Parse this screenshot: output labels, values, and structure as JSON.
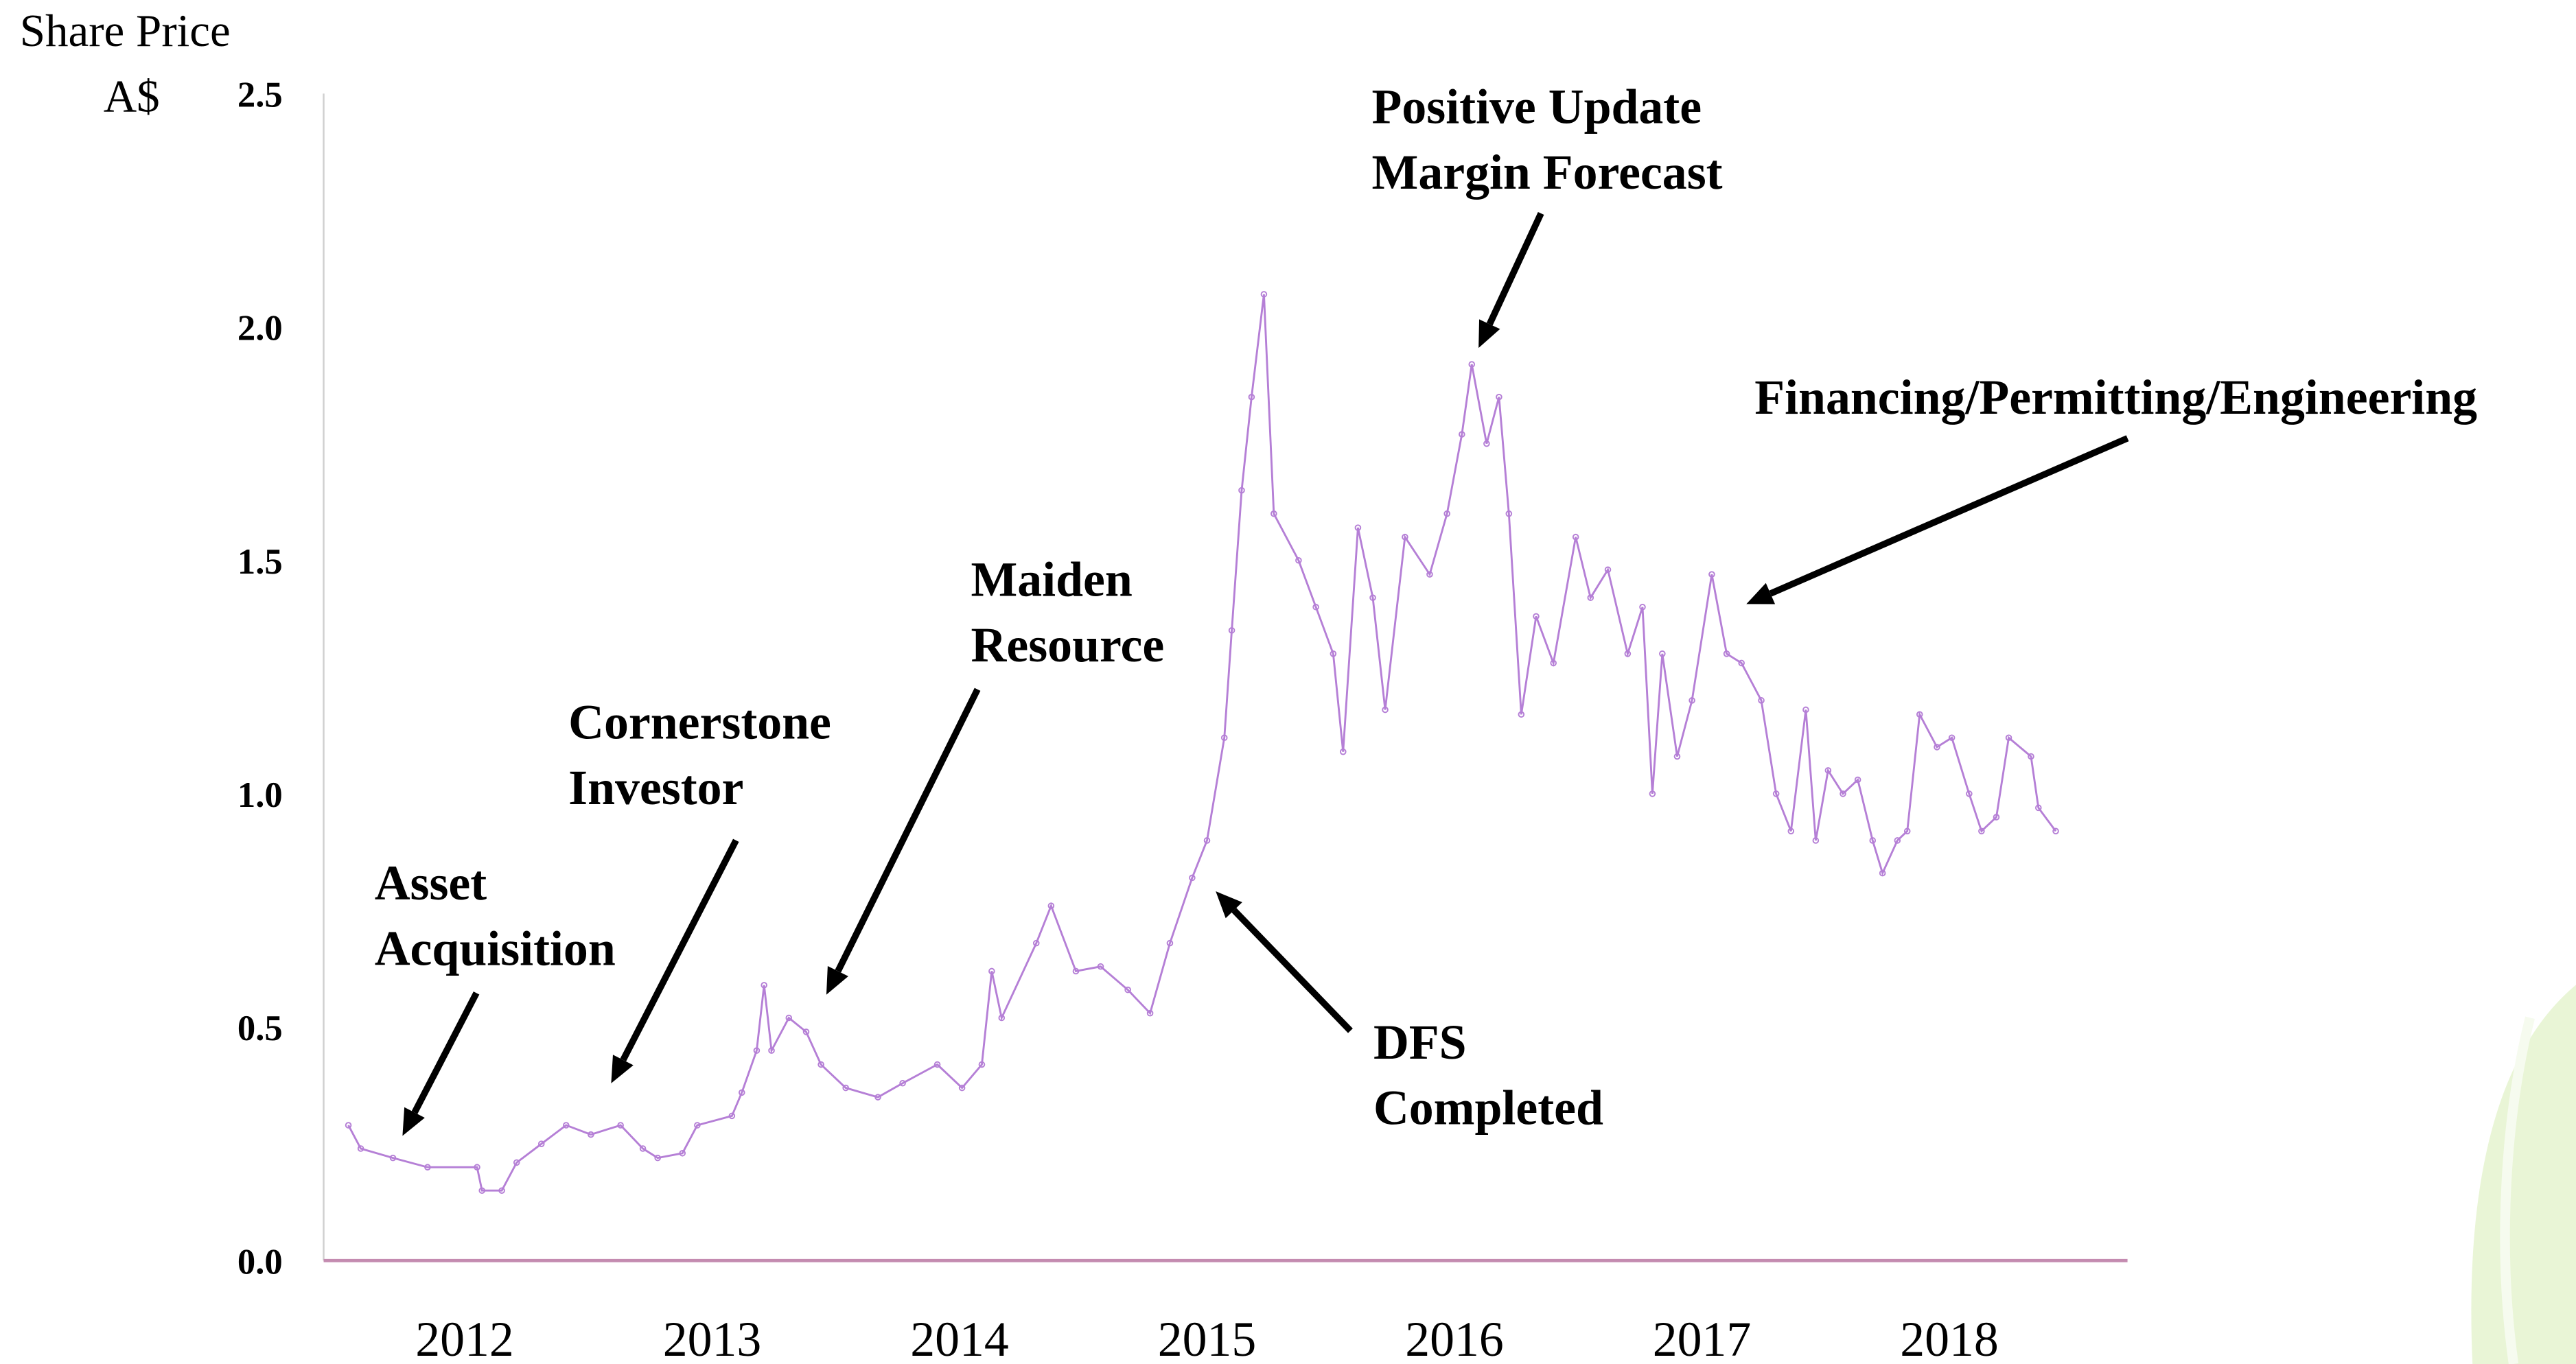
{
  "chart_data": {
    "type": "line",
    "y_label": [
      "Share Price",
      "A$"
    ],
    "annotations": [
      {
        "text": [
          "Asset",
          "Acquisition"
        ]
      },
      {
        "text": [
          "Cornerstone",
          "Investor"
        ]
      },
      {
        "text": [
          "Maiden",
          "Resource"
        ]
      },
      {
        "text": [
          "Positive Update",
          "Margin Forecast"
        ]
      },
      {
        "text": [
          "Financing/Permitting/Engineering"
        ]
      },
      {
        "text": [
          "DFS",
          "Completed"
        ]
      }
    ],
    "x": [
      2011.53,
      2011.58,
      2011.71,
      2011.85,
      2012.05,
      2012.07,
      2012.15,
      2012.21,
      2012.31,
      2012.41,
      2012.51,
      2012.63,
      2012.72,
      2012.78,
      2012.88,
      2012.94,
      2013.08,
      2013.12,
      2013.18,
      2013.21,
      2013.24,
      2013.31,
      2013.38,
      2013.44,
      2013.54,
      2013.67,
      2013.77,
      2013.91,
      2014.01,
      2014.09,
      2014.13,
      2014.17,
      2014.31,
      2014.37,
      2014.47,
      2014.57,
      2014.68,
      2014.77,
      2014.85,
      2014.94,
      2015.0,
      2015.07,
      2015.1,
      2015.14,
      2015.18,
      2015.23,
      2015.27,
      2015.37,
      2015.44,
      2015.51,
      2015.55,
      2015.61,
      2015.67,
      2015.72,
      2015.8,
      2015.9,
      2015.97,
      2016.03,
      2016.07,
      2016.13,
      2016.18,
      2016.22,
      2016.27,
      2016.33,
      2016.4,
      2016.49,
      2016.55,
      2016.62,
      2016.7,
      2016.76,
      2016.8,
      2016.84,
      2016.9,
      2016.96,
      2017.04,
      2017.1,
      2017.16,
      2017.24,
      2017.3,
      2017.36,
      2017.42,
      2017.46,
      2017.51,
      2017.57,
      2017.63,
      2017.69,
      2017.73,
      2017.79,
      2017.83,
      2017.88,
      2017.95,
      2018.01,
      2018.08,
      2018.13,
      2018.19,
      2018.24,
      2018.33,
      2018.36,
      2018.43
    ],
    "series": [
      {
        "name": "Share Price",
        "color": "#b57fd6",
        "values": [
          0.29,
          0.24,
          0.22,
          0.2,
          0.2,
          0.15,
          0.15,
          0.21,
          0.25,
          0.29,
          0.27,
          0.29,
          0.24,
          0.22,
          0.23,
          0.29,
          0.31,
          0.36,
          0.45,
          0.59,
          0.45,
          0.52,
          0.49,
          0.42,
          0.37,
          0.35,
          0.38,
          0.42,
          0.37,
          0.42,
          0.62,
          0.52,
          0.68,
          0.76,
          0.62,
          0.63,
          0.58,
          0.53,
          0.68,
          0.82,
          0.9,
          1.12,
          1.35,
          1.65,
          1.85,
          2.07,
          1.6,
          1.5,
          1.4,
          1.3,
          1.09,
          1.57,
          1.42,
          1.18,
          1.55,
          1.47,
          1.6,
          1.77,
          1.92,
          1.75,
          1.85,
          1.6,
          1.17,
          1.38,
          1.28,
          1.55,
          1.42,
          1.48,
          1.3,
          1.4,
          1.0,
          1.3,
          1.08,
          1.2,
          1.47,
          1.3,
          1.28,
          1.2,
          1.0,
          0.92,
          1.18,
          0.9,
          1.05,
          1.0,
          1.03,
          0.9,
          0.83,
          0.9,
          0.92,
          1.17,
          1.1,
          1.12,
          1.0,
          0.92,
          0.95,
          1.12,
          1.08,
          0.97,
          0.92
        ]
      }
    ],
    "xlim": [
      2011.43,
      2018.72
    ],
    "xticks": [
      2012,
      2013,
      2014,
      2015,
      2016,
      2017,
      2018
    ],
    "ylim": [
      0,
      2.5
    ],
    "yticks": [
      {
        "value": 0,
        "label": "0.0"
      },
      0.5,
      {
        "value": 1,
        "label": "1.0"
      },
      1.5,
      {
        "value": 2,
        "label": "2.0"
      },
      2.5
    ],
    "grid": false
  }
}
